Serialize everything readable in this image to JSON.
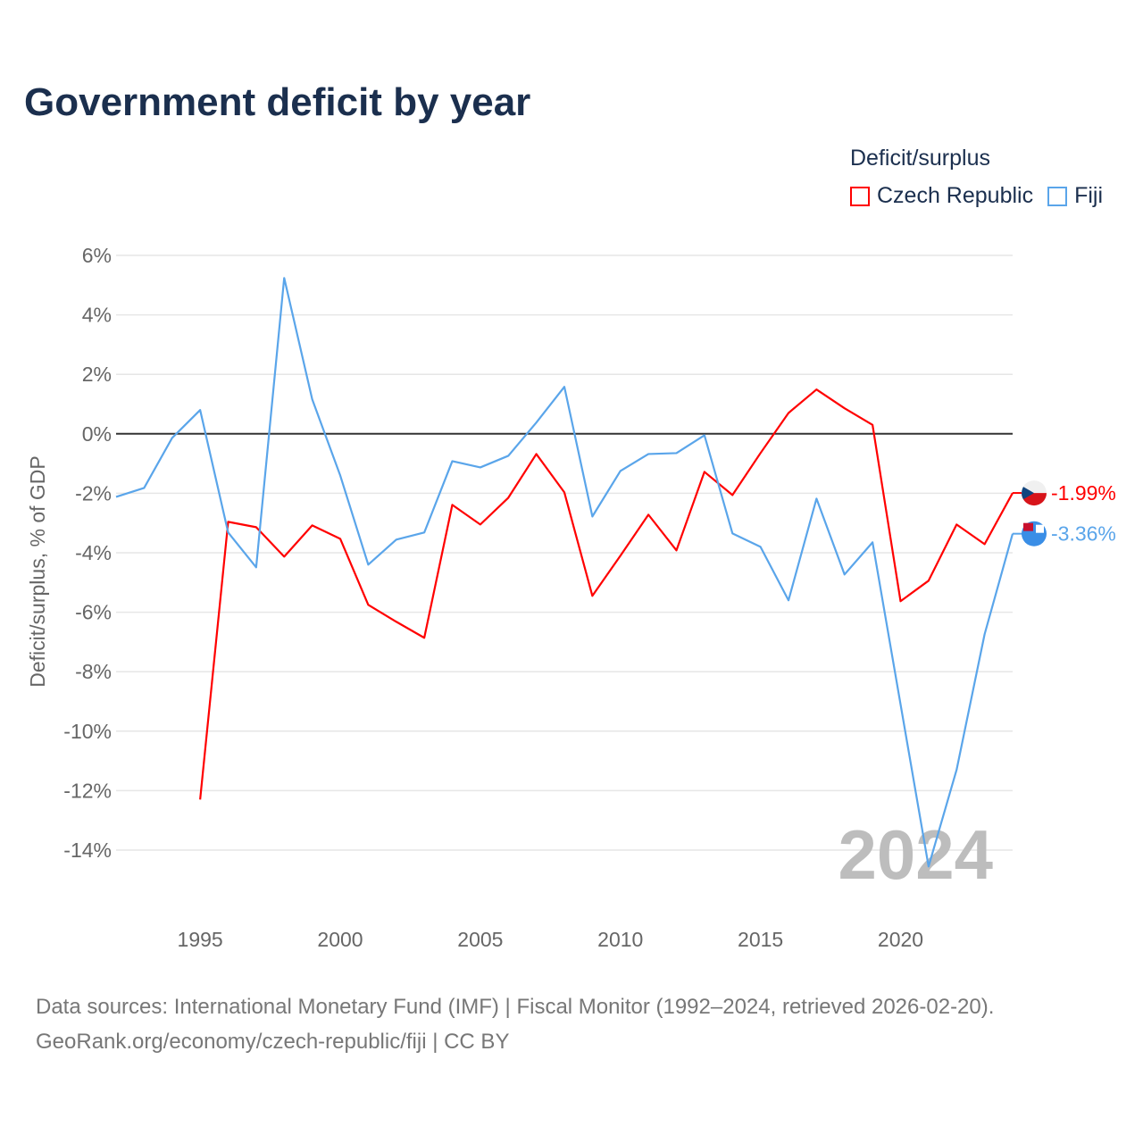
{
  "title": "Government deficit by year",
  "legend": {
    "title": "Deficit/surplus",
    "items": [
      "Czech Republic",
      "Fiji"
    ]
  },
  "source": {
    "line1": "Data sources: International Monetary Fund (IMF) | Fiscal Monitor (1992–2024, retrieved 2026-02-20).",
    "line2": "GeoRank.org/economy/czech-republic/fiji | CC BY"
  },
  "chart_data": {
    "type": "line",
    "title": "Government deficit by year",
    "xlabel": "",
    "ylabel": "Deficit/surplus, % of GDP",
    "xlim": [
      1992,
      2024
    ],
    "ylim": [
      -16,
      7
    ],
    "yticks": [
      6,
      4,
      2,
      0,
      -2,
      -4,
      -6,
      -8,
      -10,
      -12,
      -14
    ],
    "ytick_labels": [
      "6%",
      "4%",
      "2%",
      "0%",
      "-2%",
      "-4%",
      "-6%",
      "-8%",
      "-10%",
      "-12%",
      "-14%"
    ],
    "xticks": [
      1995,
      2000,
      2005,
      2010,
      2015,
      2020
    ],
    "xtick_labels": [
      "1995",
      "2000",
      "2005",
      "2010",
      "2015",
      "2020"
    ],
    "watermark_year": "2024",
    "grid": true,
    "legend_position": "top-right",
    "series": [
      {
        "name": "Czech Republic",
        "color": "#ff0000",
        "end_label": "-1.99%",
        "x": [
          1995,
          1996,
          1997,
          1998,
          1999,
          2000,
          2001,
          2002,
          2003,
          2004,
          2005,
          2006,
          2007,
          2008,
          2009,
          2010,
          2011,
          2012,
          2013,
          2014,
          2015,
          2016,
          2017,
          2018,
          2019,
          2020,
          2021,
          2022,
          2023,
          2024
        ],
        "values": [
          -12.3,
          -2.96,
          -3.14,
          -4.13,
          -3.08,
          -3.53,
          -5.75,
          -6.32,
          -6.86,
          -2.39,
          -3.05,
          -2.15,
          -0.68,
          -1.97,
          -5.45,
          -4.1,
          -2.72,
          -3.92,
          -1.28,
          -2.06,
          -0.65,
          0.7,
          1.49,
          0.86,
          0.3,
          -5.63,
          -4.94,
          -3.05,
          -3.71,
          -1.99
        ]
      },
      {
        "name": "Fiji",
        "color": "#5aa5ea",
        "end_label": "-3.36%",
        "x": [
          1992,
          1993,
          1994,
          1995,
          1996,
          1997,
          1998,
          1999,
          2000,
          2001,
          2002,
          2003,
          2004,
          2005,
          2006,
          2007,
          2008,
          2009,
          2010,
          2011,
          2012,
          2013,
          2014,
          2015,
          2016,
          2017,
          2018,
          2019,
          2020,
          2021,
          2022,
          2023,
          2024
        ],
        "values": [
          -2.12,
          -1.82,
          -0.14,
          0.8,
          -3.32,
          -4.49,
          5.24,
          1.16,
          -1.4,
          -4.4,
          -3.56,
          -3.32,
          -0.92,
          -1.13,
          -0.74,
          0.38,
          1.58,
          -2.78,
          -1.25,
          -0.68,
          -0.65,
          -0.05,
          -3.35,
          -3.8,
          -5.6,
          -2.18,
          -4.73,
          -3.65,
          -9.1,
          -14.55,
          -11.3,
          -6.74,
          -3.36
        ]
      }
    ]
  }
}
